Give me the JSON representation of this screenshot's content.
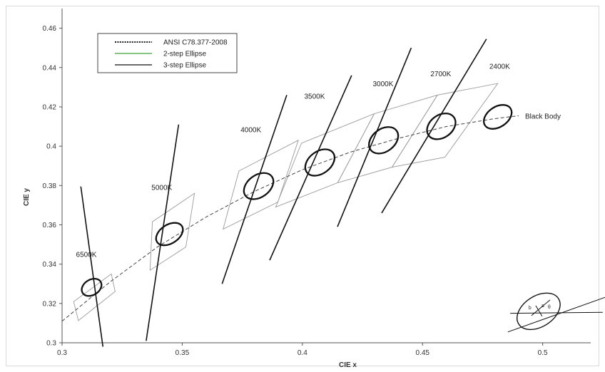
{
  "chart_data": {
    "type": "scatter",
    "title": "",
    "xlabel": "CIE x",
    "ylabel": "CIE y",
    "xlim": [
      0.3,
      0.52
    ],
    "ylim": [
      0.3,
      0.47
    ],
    "xticks": [
      "0.3",
      "0.35",
      "0.4",
      "0.45",
      "0.5"
    ],
    "yticks": [
      "0.3",
      "0.32",
      "0.34",
      "0.36",
      "0.38",
      "0.4",
      "0.42",
      "0.44",
      "0.46"
    ],
    "grid": false,
    "legend_position": "top-left",
    "legend": [
      {
        "label": "ANSI C78.377-2008",
        "style": "dotted",
        "color": "#222222"
      },
      {
        "label": "2-step Ellipse",
        "style": "solid",
        "color": "#3aa335"
      },
      {
        "label": "3-step Ellipse",
        "style": "solid",
        "color": "#111111"
      }
    ],
    "black_body_label": "Black Body",
    "black_body_curve": [
      [
        0.3,
        0.311
      ],
      [
        0.32,
        0.331
      ],
      [
        0.34,
        0.349
      ],
      [
        0.36,
        0.364
      ],
      [
        0.38,
        0.377
      ],
      [
        0.4,
        0.388
      ],
      [
        0.42,
        0.397
      ],
      [
        0.44,
        0.404
      ],
      [
        0.46,
        0.41
      ],
      [
        0.48,
        0.414
      ],
      [
        0.49,
        0.4155
      ]
    ],
    "ellipses": [
      {
        "cct": "6500K",
        "x": 0.3123,
        "y": 0.3282,
        "rx": 0.0032,
        "ry": 0.0054,
        "angle": 58
      },
      {
        "cct": "5000K",
        "x": 0.3447,
        "y": 0.3553,
        "rx": 0.0039,
        "ry": 0.0075,
        "angle": 57
      },
      {
        "cct": "4000K",
        "x": 0.3818,
        "y": 0.3797,
        "rx": 0.0046,
        "ry": 0.0083,
        "angle": 54
      },
      {
        "cct": "3500K",
        "x": 0.4073,
        "y": 0.3917,
        "rx": 0.0046,
        "ry": 0.0083,
        "angle": 53
      },
      {
        "cct": "3000K",
        "x": 0.4338,
        "y": 0.403,
        "rx": 0.0047,
        "ry": 0.0082,
        "angle": 53
      },
      {
        "cct": "2700K",
        "x": 0.4578,
        "y": 0.4101,
        "rx": 0.0047,
        "ry": 0.0079,
        "angle": 54
      },
      {
        "cct": "2400K",
        "x": 0.4813,
        "y": 0.4149,
        "rx": 0.0042,
        "ry": 0.0078,
        "angle": 56
      }
    ],
    "quadrangles": [
      {
        "cct": "6500K",
        "points": [
          [
            0.3048,
            0.3209
          ],
          [
            0.3068,
            0.3113
          ],
          [
            0.3221,
            0.3261
          ],
          [
            0.3205,
            0.335
          ]
        ]
      },
      {
        "cct": "5000K",
        "points": [
          [
            0.3376,
            0.3616
          ],
          [
            0.3366,
            0.3369
          ],
          [
            0.3515,
            0.3487
          ],
          [
            0.3551,
            0.376
          ]
        ]
      },
      {
        "cct": "4000K",
        "points": [
          [
            0.3736,
            0.3874
          ],
          [
            0.367,
            0.3578
          ],
          [
            0.3898,
            0.3716
          ],
          [
            0.3983,
            0.403
          ]
        ]
      },
      {
        "cct": "3500K",
        "points": [
          [
            0.3996,
            0.4015
          ],
          [
            0.3889,
            0.369
          ],
          [
            0.4147,
            0.3814
          ],
          [
            0.4299,
            0.4165
          ]
        ]
      },
      {
        "cct": "3000K",
        "points": [
          [
            0.4299,
            0.4165
          ],
          [
            0.4147,
            0.3814
          ],
          [
            0.4373,
            0.3893
          ],
          [
            0.4562,
            0.426
          ]
        ]
      },
      {
        "cct": "2700K",
        "points": [
          [
            0.4562,
            0.426
          ],
          [
            0.4373,
            0.3893
          ],
          [
            0.4593,
            0.3944
          ],
          [
            0.4813,
            0.4319
          ]
        ]
      }
    ],
    "isotemperature_lines": [
      {
        "cct": "6500K",
        "from": [
          0.3078,
          0.3795
        ],
        "to": [
          0.317,
          0.298
        ]
      },
      {
        "cct": "5000K",
        "from": [
          0.335,
          0.301
        ],
        "to": [
          0.3485,
          0.411
        ]
      },
      {
        "cct": "4000K",
        "from": [
          0.3666,
          0.33
        ],
        "to": [
          0.3935,
          0.426
        ]
      },
      {
        "cct": "3500K",
        "from": [
          0.3864,
          0.342
        ],
        "to": [
          0.4205,
          0.436
        ]
      },
      {
        "cct": "3000K",
        "from": [
          0.4146,
          0.359
        ],
        "to": [
          0.4453,
          0.45
        ]
      },
      {
        "cct": "2700K",
        "from": [
          0.433,
          0.366
        ],
        "to": [
          0.4766,
          0.4545
        ]
      }
    ],
    "inset_ellipse": {
      "center": [
        0.4983,
        0.316
      ],
      "rx": 0.0064,
      "ry": 0.012,
      "angle": 57,
      "annotations": [
        "a",
        "b",
        "θ"
      ],
      "lines": [
        {
          "from": [
            0.4855,
            0.3055
          ],
          "to": [
            0.528,
            0.324
          ]
        },
        {
          "from": [
            0.4865,
            0.315
          ],
          "to": [
            0.525,
            0.3155
          ]
        }
      ]
    }
  }
}
